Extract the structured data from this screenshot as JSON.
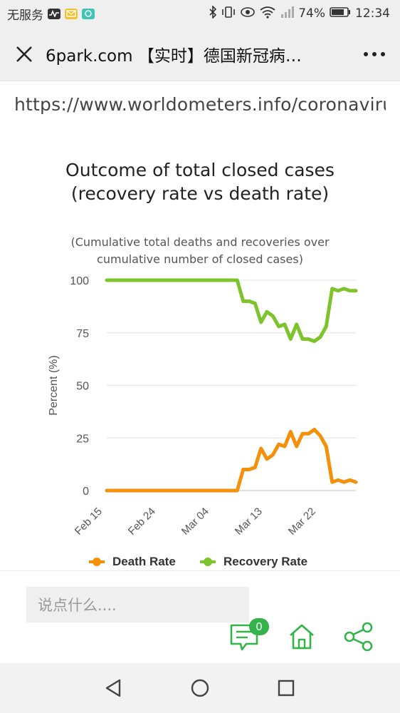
{
  "status_bar": {
    "carrier": "无服务",
    "battery": "74%",
    "time": "12:34"
  },
  "header": {
    "title": "6park.com 【实时】德国新冠病…"
  },
  "article": {
    "url_text": "https://www.worldometers.info/coronaviru"
  },
  "chart_data": {
    "type": "line",
    "title": "Outcome of total closed cases (recovery rate vs death rate)",
    "subtitle": "(Cumulative total deaths and recoveries over cumulative number of closed cases)",
    "ylabel": "Percent (%)",
    "xlabel": "",
    "ylim": [
      0,
      100
    ],
    "y_ticks": [
      0,
      25,
      50,
      75,
      100
    ],
    "x_ticks": [
      "Feb 15",
      "Feb 24",
      "Mar 04",
      "Mar 13",
      "Mar 22"
    ],
    "x_tick_index": [
      0,
      9,
      18,
      27,
      36
    ],
    "grid": true,
    "legend_position": "bottom",
    "series": [
      {
        "name": "Death Rate",
        "color": "#f5900d",
        "values": [
          0,
          0,
          0,
          0,
          0,
          0,
          0,
          0,
          0,
          0,
          0,
          0,
          0,
          0,
          0,
          0,
          0,
          0,
          0,
          0,
          0,
          0,
          0,
          10,
          10,
          11,
          20,
          15,
          17,
          22,
          21,
          28,
          21,
          27,
          27,
          29,
          26,
          21,
          4,
          5,
          4,
          5,
          4
        ]
      },
      {
        "name": "Recovery Rate",
        "color": "#7dc42c",
        "values": [
          100,
          100,
          100,
          100,
          100,
          100,
          100,
          100,
          100,
          100,
          100,
          100,
          100,
          100,
          100,
          100,
          100,
          100,
          100,
          100,
          100,
          100,
          100,
          90,
          90,
          89,
          80,
          85,
          83,
          78,
          79,
          72,
          79,
          72,
          72,
          71,
          73,
          78,
          96,
          95,
          96,
          95,
          95
        ]
      }
    ]
  },
  "comment": {
    "placeholder": "说点什么...."
  },
  "actions": {
    "comment_count": "0"
  },
  "colors": {
    "accent": "#34b34a",
    "death": "#f5900d",
    "recovery": "#7dc42c"
  }
}
